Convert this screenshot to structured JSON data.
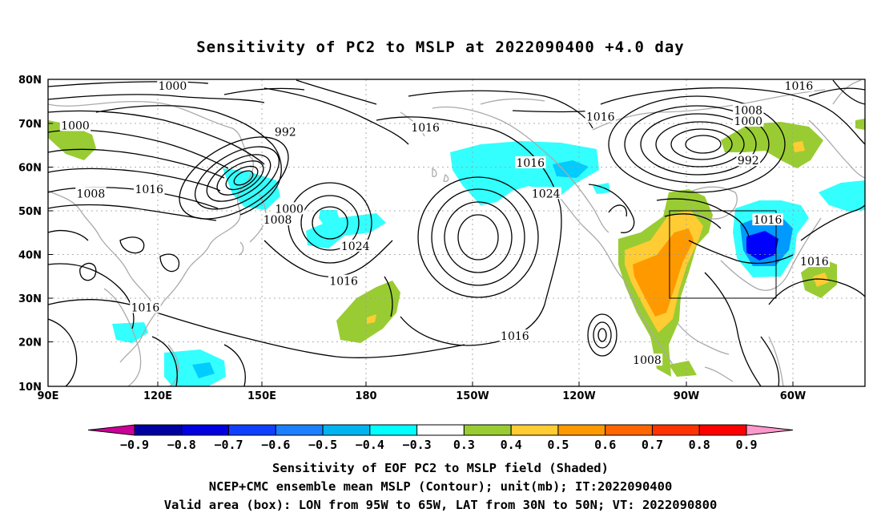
{
  "title": "Sensitivity of PC2 to MSLP at 2022090400 +4.0 day",
  "map": {
    "lat_labels": [
      "80N",
      "70N",
      "60N",
      "50N",
      "40N",
      "30N",
      "20N",
      "10N"
    ],
    "lon_labels": [
      "90E",
      "120E",
      "150E",
      "180",
      "150W",
      "120W",
      "90W",
      "60W"
    ],
    "contour_labels": [
      {
        "text": "1000",
        "lon": 122,
        "lat": 78.5
      },
      {
        "text": "1000",
        "lon": 97,
        "lat": 69.5
      },
      {
        "text": "992",
        "lon": 151,
        "lat": 68
      },
      {
        "text": "1016",
        "lon": -173,
        "lat": 69
      },
      {
        "text": "1016",
        "lon": -128,
        "lat": 71.5
      },
      {
        "text": "1016",
        "lon": -77,
        "lat": 78.5
      },
      {
        "text": "1008",
        "lon": -90,
        "lat": 73
      },
      {
        "text": "1000",
        "lon": -90,
        "lat": 70.5
      },
      {
        "text": "992",
        "lon": -90,
        "lat": 61.5
      },
      {
        "text": "1016",
        "lon": -146,
        "lat": 61
      },
      {
        "text": "1024",
        "lon": -142,
        "lat": 54
      },
      {
        "text": "1008",
        "lon": 101,
        "lat": 54
      },
      {
        "text": "1016",
        "lon": 116,
        "lat": 55
      },
      {
        "text": "1000",
        "lon": 152,
        "lat": 50.5
      },
      {
        "text": "1008",
        "lon": 149,
        "lat": 48
      },
      {
        "text": "1024",
        "lon": 169,
        "lat": 42
      },
      {
        "text": "1016",
        "lon": 166,
        "lat": 34
      },
      {
        "text": "1016",
        "lon": 115,
        "lat": 28
      },
      {
        "text": "1016",
        "lon": -150,
        "lat": 21.5
      },
      {
        "text": "1008",
        "lon": -116,
        "lat": 16
      },
      {
        "text": "1016",
        "lon": -85,
        "lat": 48
      },
      {
        "text": "1016",
        "lon": -73,
        "lat": 38.5
      }
    ],
    "valid_box": {
      "lon_min": -95,
      "lon_max": -65,
      "lat_min": 30,
      "lat_max": 50
    },
    "colors": {
      "pos_03_04": "#99cc33",
      "pos_04_05": "#ffcc33",
      "pos_05_06": "#ff9900",
      "neg_04_03": "#33ffff",
      "neg_05_04": "#00ccff",
      "neg_06_05": "#0099ff",
      "neg_07_06": "#0066ff",
      "neg_08_07": "#0000ff",
      "coast": "#aaaaaa"
    }
  },
  "colorbar": {
    "labels": [
      "−0.9",
      "−0.8",
      "−0.7",
      "−0.6",
      "−0.5",
      "−0.4",
      "−0.3",
      "0.3",
      "0.4",
      "0.5",
      "0.6",
      "0.7",
      "0.8",
      "0.9"
    ],
    "colors": [
      "#0000a0",
      "#0000e0",
      "#1040ff",
      "#1a80ff",
      "#00b4f0",
      "#00ffff",
      "#ffffff",
      "#99cc33",
      "#ffcc33",
      "#ff9900",
      "#ff6600",
      "#ff3300",
      "#ff0000"
    ],
    "end_low": "#cc0099",
    "end_high": "#ff99cc"
  },
  "captions": {
    "line1": "Sensitivity of EOF PC2 to MSLP field (Shaded)",
    "line2": "NCEP+CMC ensemble mean MSLP (Contour); unit(mb); IT:2022090400",
    "line3": "Valid area (box): LON from 95W to 65W, LAT from 30N to 50N; VT: 2022090800"
  }
}
